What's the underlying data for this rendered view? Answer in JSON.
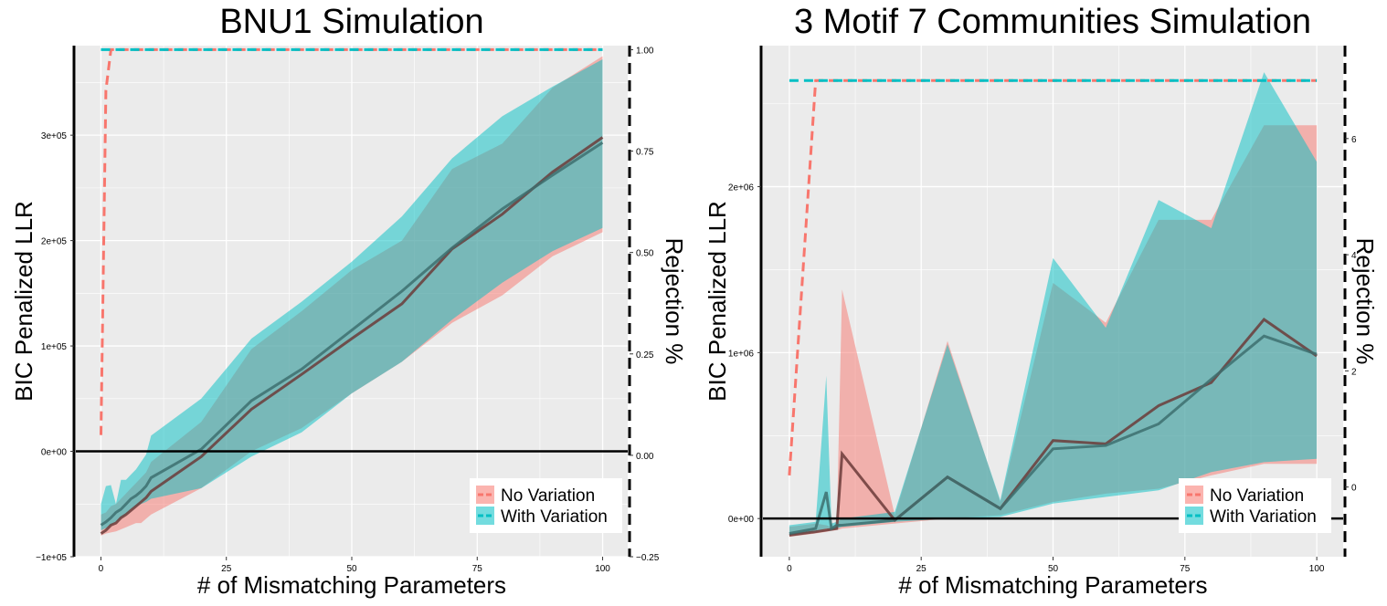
{
  "colors": {
    "no_variation": "#F8766D",
    "with_variation": "#00BFC4",
    "overlap_mean": "#3d6f6f",
    "panel_bg": "#EBEBEB",
    "grid": "#ffffff"
  },
  "chart_data": [
    {
      "type": "line",
      "title": "BNU1 Simulation",
      "xlabel": "# of Mismatching Parameters",
      "ylabel": "BIC Penalized LLR",
      "y2label": "Rejection %",
      "xlim": [
        -5,
        105
      ],
      "ylim": [
        -100000,
        385000
      ],
      "y2lim": [
        -0.25,
        1.01
      ],
      "xticks": [
        0,
        25,
        50,
        75,
        100
      ],
      "xtick_labels": [
        "0",
        "25",
        "50",
        "75",
        "100"
      ],
      "yticks": [
        -100000,
        0,
        100000,
        200000,
        300000
      ],
      "ytick_labels": [
        "−1e+05",
        "0e+00",
        "1e+05",
        "2e+05",
        "3e+05"
      ],
      "y2ticks": [
        -0.25,
        0,
        0.25,
        0.5,
        0.75,
        1.0
      ],
      "y2tick_labels": [
        "−0.25",
        "0.00",
        "0.25",
        "0.50",
        "0.75",
        "1.00"
      ],
      "legend": [
        "No Variation",
        "With Variation"
      ],
      "legend_position": "bottom-right",
      "hline_y": 0,
      "x": [
        0,
        1,
        2,
        3,
        4,
        5,
        6,
        7,
        8,
        9,
        10,
        20,
        30,
        40,
        50,
        60,
        70,
        80,
        90,
        100
      ],
      "series": [
        {
          "name": "No Variation",
          "mean": [
            -78000,
            -75000,
            -70000,
            -68000,
            -63000,
            -60000,
            -56000,
            -52000,
            -48000,
            -44000,
            -38000,
            -5000,
            40000,
            73000,
            107000,
            140000,
            192000,
            225000,
            265000,
            298000
          ],
          "lower": [
            -80000,
            -78000,
            -77000,
            -76000,
            -74000,
            -72000,
            -70000,
            -68000,
            -68000,
            -64000,
            -60000,
            -35000,
            0,
            22000,
            55000,
            85000,
            122000,
            148000,
            185000,
            208000
          ],
          "upper": [
            -60000,
            -58000,
            -52000,
            -50000,
            -45000,
            -40000,
            -35000,
            -30000,
            -25000,
            -20000,
            -10000,
            28000,
            97000,
            133000,
            172000,
            200000,
            268000,
            292000,
            345000,
            375000
          ],
          "rejection": [
            0.05,
            0.9,
            1.0,
            1.0,
            1.0,
            1.0,
            1.0,
            1.0,
            1.0,
            1.0,
            1.0,
            1.0,
            1.0,
            1.0,
            1.0,
            1.0,
            1.0,
            1.0,
            1.0,
            1.0
          ]
        },
        {
          "name": "With Variation",
          "mean": [
            -70000,
            -67000,
            -63000,
            -58000,
            -55000,
            -50000,
            -45000,
            -42000,
            -38000,
            -33000,
            -25000,
            2000,
            48000,
            78000,
            115000,
            152000,
            193000,
            230000,
            262000,
            293000
          ],
          "lower": [
            -75000,
            -73000,
            -70000,
            -67000,
            -63000,
            -60000,
            -55000,
            -52000,
            -50000,
            -48000,
            -45000,
            -35000,
            -5000,
            18000,
            55000,
            85000,
            125000,
            160000,
            190000,
            212000
          ],
          "upper": [
            -50000,
            -33000,
            -32000,
            -50000,
            -27000,
            -27000,
            -22000,
            -17000,
            -10000,
            -3000,
            15000,
            50000,
            107000,
            142000,
            180000,
            223000,
            278000,
            318000,
            346000,
            372000
          ],
          "rejection": [
            1.0,
            1.0,
            1.0,
            1.0,
            1.0,
            1.0,
            1.0,
            1.0,
            1.0,
            1.0,
            1.0,
            1.0,
            1.0,
            1.0,
            1.0,
            1.0,
            1.0,
            1.0,
            1.0,
            1.0
          ]
        }
      ]
    },
    {
      "type": "line",
      "title": "3 Motif 7 Communities Simulation",
      "xlabel": "# of Mismatching Parameters",
      "ylabel": "BIC Penalized LLR",
      "y2label": "Rejection %",
      "xlim": [
        -5,
        105
      ],
      "ylim": [
        -230000,
        2850000
      ],
      "y2lim": [
        -1.2,
        7.6
      ],
      "xticks": [
        0,
        25,
        50,
        75,
        100
      ],
      "xtick_labels": [
        "0",
        "25",
        "50",
        "75",
        "100"
      ],
      "yticks": [
        0,
        1000000,
        2000000
      ],
      "ytick_labels": [
        "0e+00",
        "1e+06",
        "2e+06"
      ],
      "y2ticks": [
        0,
        2,
        4,
        6
      ],
      "y2tick_labels": [
        "0",
        "2",
        "4",
        "6"
      ],
      "legend": [
        "No Variation",
        "With Variation"
      ],
      "legend_position": "bottom-right",
      "hline_y": 0,
      "x": [
        0,
        5,
        7,
        8,
        9,
        10,
        20,
        30,
        40,
        50,
        60,
        70,
        80,
        90,
        100
      ],
      "series": [
        {
          "name": "No Variation",
          "mean": [
            -100000,
            -80000,
            -70000,
            -65000,
            -60000,
            390000,
            -10000,
            250000,
            60000,
            470000,
            450000,
            680000,
            820000,
            1200000,
            980000
          ],
          "lower": [
            -110000,
            -90000,
            -80000,
            -75000,
            -70000,
            -60000,
            -30000,
            0,
            20000,
            100000,
            150000,
            180000,
            260000,
            330000,
            330000
          ],
          "upper": [
            -50000,
            -30000,
            -40000,
            -50000,
            -40000,
            1380000,
            20000,
            1070000,
            100000,
            1420000,
            1180000,
            1800000,
            1800000,
            2370000,
            2370000
          ],
          "rejection": [
            0.2,
            7.0,
            7.0,
            7.0,
            7.0,
            7.0,
            7.0,
            7.0,
            7.0,
            7.0,
            7.0,
            7.0,
            7.0,
            7.0,
            7.0
          ]
        },
        {
          "name": "With Variation",
          "mean": [
            -90000,
            -60000,
            160000,
            -60000,
            -40000,
            -40000,
            -10000,
            250000,
            60000,
            420000,
            440000,
            570000,
            840000,
            1100000,
            990000
          ],
          "lower": [
            -100000,
            -80000,
            -60000,
            -70000,
            -60000,
            -50000,
            -20000,
            0,
            10000,
            90000,
            130000,
            170000,
            280000,
            340000,
            360000
          ],
          "upper": [
            -40000,
            -20000,
            860000,
            -30000,
            -20000,
            0,
            40000,
            1050000,
            110000,
            1570000,
            1150000,
            1920000,
            1750000,
            2690000,
            2150000
          ],
          "rejection": [
            7.0,
            7.0,
            7.0,
            7.0,
            7.0,
            7.0,
            7.0,
            7.0,
            7.0,
            7.0,
            7.0,
            7.0,
            7.0,
            7.0,
            7.0
          ]
        }
      ]
    }
  ]
}
